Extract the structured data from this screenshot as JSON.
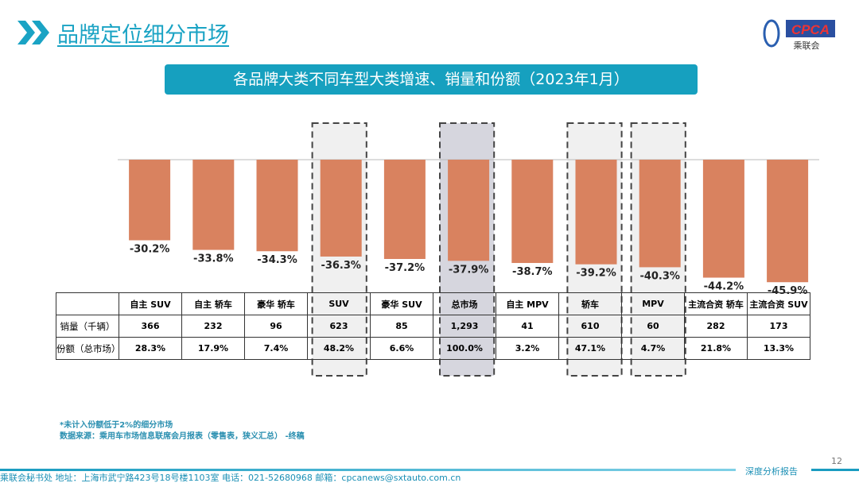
{
  "header": {
    "title": "品牌定位细分市场",
    "logo_text": "CPCA",
    "logo_sub": "乘联会"
  },
  "chart_data": {
    "type": "bar",
    "title": "各品牌大类不同车型大类增速、销量和份额（2023年1月）",
    "categories": [
      "自主 SUV",
      "自主 轿车",
      "豪华 轿车",
      "SUV",
      "豪华 SUV",
      "总市场",
      "自主 MPV",
      "轿车",
      "MPV",
      "主流合资 轿车",
      "主流合资 SUV"
    ],
    "values": [
      -30.2,
      -33.8,
      -34.3,
      -36.3,
      -37.2,
      -37.9,
      -38.7,
      -39.2,
      -40.3,
      -44.2,
      -45.9
    ],
    "value_labels": [
      "-30.2%",
      "-33.8%",
      "-34.3%",
      "-36.3%",
      "-37.2%",
      "-37.9%",
      "-38.7%",
      "-39.2%",
      "-40.3%",
      "-44.2%",
      "-45.9%"
    ],
    "highlighted": [
      "SUV",
      "总市场",
      "轿车",
      "MPV"
    ],
    "bar_color": "#d9825f",
    "ylim": [
      -50,
      0
    ],
    "grid": false,
    "table": {
      "row_labels": [
        "销量（千辆）",
        "份额（总市场）"
      ],
      "sales": [
        "366",
        "232",
        "96",
        "623",
        "85",
        "1,293",
        "41",
        "610",
        "60",
        "282",
        "173"
      ],
      "share": [
        "28.3%",
        "17.9%",
        "7.4%",
        "48.2%",
        "6.6%",
        "100.0%",
        "3.2%",
        "47.1%",
        "4.7%",
        "21.8%",
        "13.3%"
      ]
    }
  },
  "notes": {
    "note1": "*未计入份额低于2%的细分市场",
    "note2": "数据来源：乘用车市场信息联席会月报表（零售表，狭义汇总） -终稿"
  },
  "footer": {
    "text": "乘联会秘书处   地址：上海市武宁路423号18号楼1103室  电话：021-52680968   邮箱：cpcanews@sxtauto.com.cn",
    "page": "12",
    "tag": "深度分析报告"
  },
  "colors": {
    "accent": "#16a0bf"
  }
}
